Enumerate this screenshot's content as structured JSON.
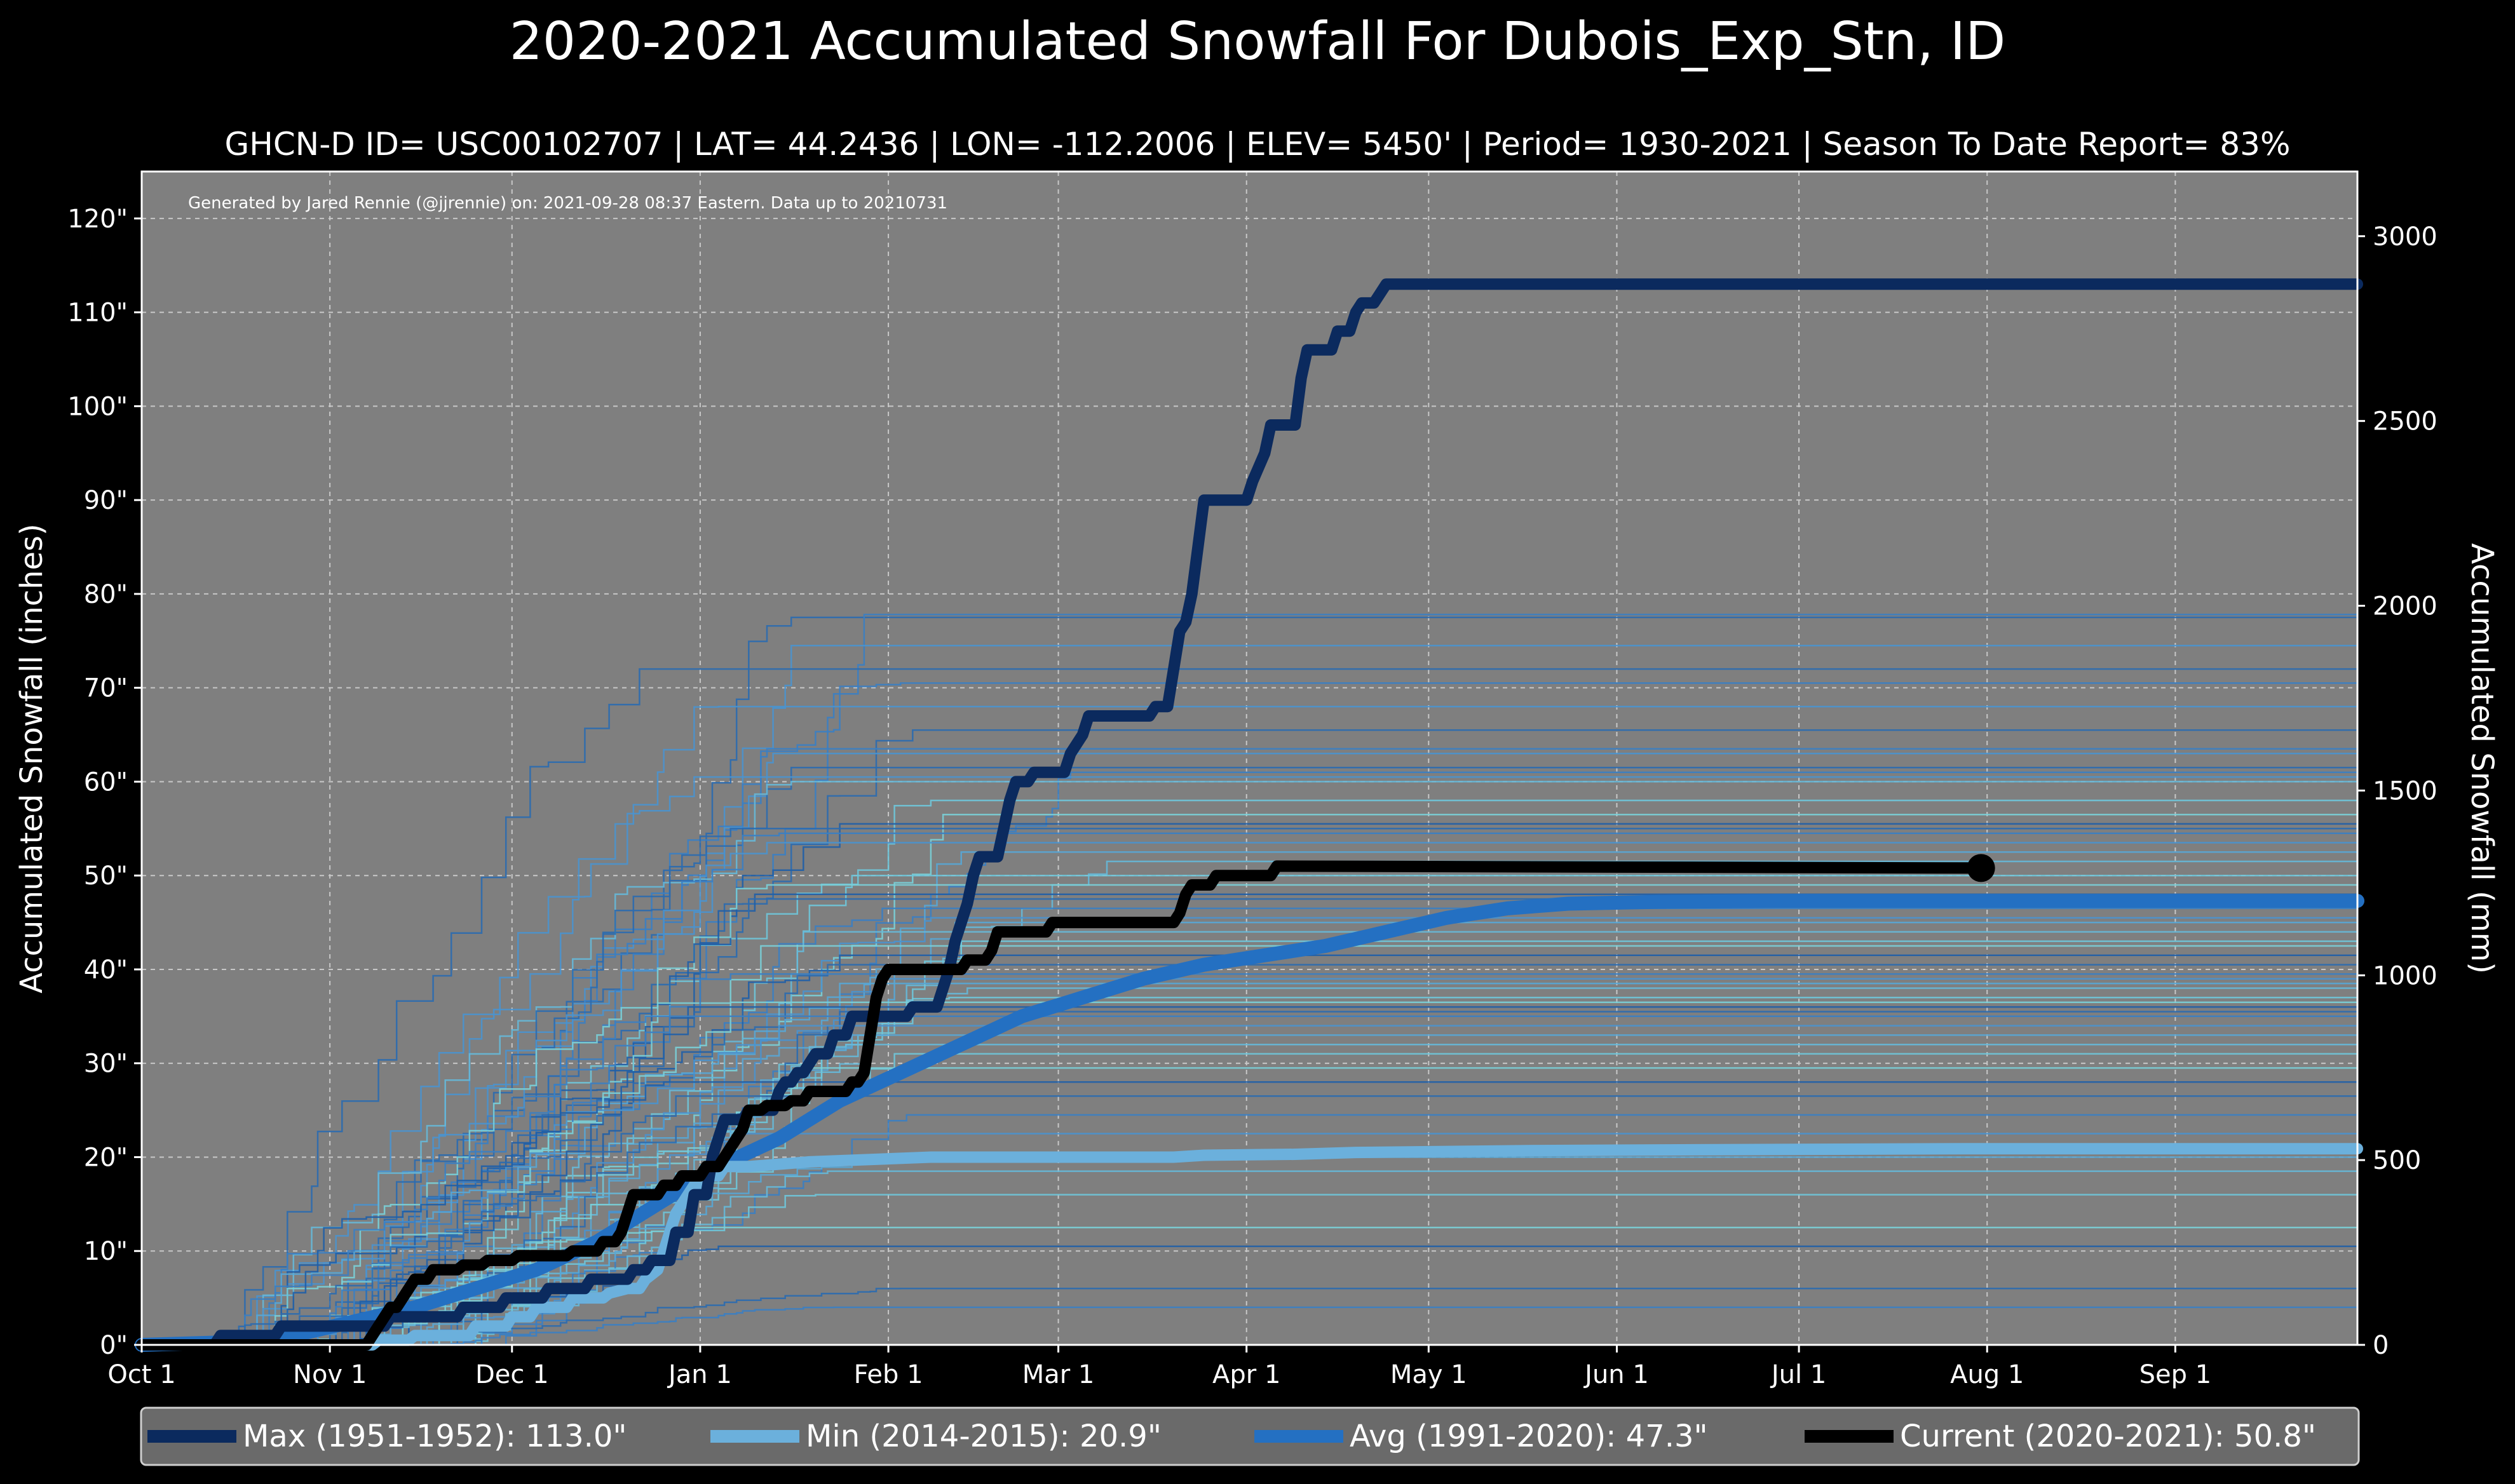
{
  "chart_data": {
    "type": "line",
    "title": "2020-2021 Accumulated Snowfall For Dubois_Exp_Stn, ID",
    "subtitle": "GHCN-D ID= USC00102707 | LAT= 44.2436 | LON= -112.2006 | ELEV= 5450' | Period= 1930-2021 | Season To Date Report= 83%",
    "credit": "Generated by Jared Rennie (@jjrennie) on: 2021-09-28 08:37 Eastern. Data up to 20210731",
    "ylabel": "Accumulated Snowfall (inches)",
    "ylabel_right": "Accumulated Snowfall (mm)",
    "xlim": [
      0,
      365
    ],
    "ylim": [
      0,
      125
    ],
    "x_ticks": [
      {
        "day": 0,
        "label": "Oct 1"
      },
      {
        "day": 31,
        "label": "Nov 1"
      },
      {
        "day": 61,
        "label": "Dec 1"
      },
      {
        "day": 92,
        "label": "Jan 1"
      },
      {
        "day": 123,
        "label": "Feb 1"
      },
      {
        "day": 151,
        "label": "Mar 1"
      },
      {
        "day": 182,
        "label": "Apr 1"
      },
      {
        "day": 212,
        "label": "May 1"
      },
      {
        "day": 243,
        "label": "Jun 1"
      },
      {
        "day": 273,
        "label": "Jul 1"
      },
      {
        "day": 304,
        "label": "Aug 1"
      },
      {
        "day": 335,
        "label": "Sep 1"
      }
    ],
    "y_ticks": [
      {
        "value": 0,
        "label": "0\""
      },
      {
        "value": 10,
        "label": "10\""
      },
      {
        "value": 20,
        "label": "20\""
      },
      {
        "value": 30,
        "label": "30\""
      },
      {
        "value": 40,
        "label": "40\""
      },
      {
        "value": 50,
        "label": "50\""
      },
      {
        "value": 60,
        "label": "60\""
      },
      {
        "value": 70,
        "label": "70\""
      },
      {
        "value": 80,
        "label": "80\""
      },
      {
        "value": 90,
        "label": "90\""
      },
      {
        "value": 100,
        "label": "100\""
      },
      {
        "value": 110,
        "label": "110\""
      },
      {
        "value": 120,
        "label": "120\""
      }
    ],
    "y2_ticks": [
      {
        "mm": 0,
        "label": "0"
      },
      {
        "mm": 500,
        "label": "500"
      },
      {
        "mm": 1000,
        "label": "1000"
      },
      {
        "mm": 1500,
        "label": "1500"
      },
      {
        "mm": 2000,
        "label": "2000"
      },
      {
        "mm": 2500,
        "label": "2500"
      },
      {
        "mm": 3000,
        "label": "3000"
      }
    ],
    "background_season_finals": [
      77.5,
      77.8,
      74.5,
      72.0,
      70.5,
      68.0,
      65.5,
      63.5,
      63.0,
      61.5,
      61.0,
      60.5,
      60.0,
      58.0,
      56.5,
      55.5,
      55.0,
      54.5,
      53.5,
      52.5,
      51.5,
      50.0,
      49.0,
      48.0,
      47.5,
      46.5,
      45.5,
      45.0,
      44.0,
      43.0,
      42.5,
      41.5,
      40.5,
      39.5,
      39.0,
      38.5,
      38.0,
      37.0,
      36.5,
      36.0,
      35.5,
      35.0,
      34.0,
      33.0,
      32.0,
      31.0,
      29.5,
      28.0,
      26.5,
      24.5,
      22.5,
      20.0,
      18.5,
      16.0,
      12.5,
      10.5,
      6.0,
      4.0
    ],
    "series": [
      {
        "name": "Max (1951-1952)",
        "legend": "Max (1951-1952):  113.0\"",
        "color": "#0b2a5e",
        "points": [
          [
            0,
            0
          ],
          [
            12,
            0
          ],
          [
            13,
            1
          ],
          [
            22,
            1
          ],
          [
            23,
            2
          ],
          [
            40,
            2
          ],
          [
            41,
            3
          ],
          [
            52,
            3
          ],
          [
            53,
            4
          ],
          [
            59,
            4
          ],
          [
            60,
            5
          ],
          [
            66,
            5
          ],
          [
            67,
            6
          ],
          [
            73,
            6
          ],
          [
            74,
            7
          ],
          [
            80,
            7
          ],
          [
            81,
            8
          ],
          [
            83,
            8
          ],
          [
            84,
            9
          ],
          [
            87,
            9
          ],
          [
            88,
            12
          ],
          [
            90,
            12
          ],
          [
            91,
            16
          ],
          [
            93,
            16
          ],
          [
            94,
            20
          ],
          [
            95,
            22
          ],
          [
            96,
            24
          ],
          [
            99,
            24
          ],
          [
            100,
            25
          ],
          [
            104,
            25
          ],
          [
            105,
            27
          ],
          [
            106,
            28
          ],
          [
            107,
            28
          ],
          [
            108,
            29
          ],
          [
            109,
            29
          ],
          [
            110,
            30
          ],
          [
            111,
            31
          ],
          [
            113,
            31
          ],
          [
            114,
            33
          ],
          [
            116,
            33
          ],
          [
            117,
            35
          ],
          [
            126,
            35
          ],
          [
            127,
            36
          ],
          [
            131,
            36
          ],
          [
            132,
            38
          ],
          [
            133,
            40
          ],
          [
            134,
            43
          ],
          [
            135,
            45
          ],
          [
            136,
            47
          ],
          [
            137,
            50
          ],
          [
            138,
            52
          ],
          [
            141,
            52
          ],
          [
            142,
            55
          ],
          [
            143,
            58
          ],
          [
            144,
            60
          ],
          [
            146,
            60
          ],
          [
            147,
            61
          ],
          [
            152,
            61
          ],
          [
            153,
            63
          ],
          [
            155,
            65
          ],
          [
            156,
            67
          ],
          [
            166,
            67
          ],
          [
            167,
            68
          ],
          [
            169,
            68
          ],
          [
            170,
            72
          ],
          [
            171,
            76
          ],
          [
            172,
            77
          ],
          [
            173,
            80
          ],
          [
            174,
            85
          ],
          [
            175,
            90
          ],
          [
            182,
            90
          ],
          [
            183,
            92
          ],
          [
            185,
            95
          ],
          [
            186,
            98
          ],
          [
            190,
            98
          ],
          [
            191,
            103
          ],
          [
            192,
            106
          ],
          [
            196,
            106
          ],
          [
            197,
            108
          ],
          [
            199,
            108
          ],
          [
            200,
            110
          ],
          [
            201,
            111
          ],
          [
            203,
            111
          ],
          [
            204,
            112
          ],
          [
            205,
            113
          ],
          [
            365,
            113
          ]
        ]
      },
      {
        "name": "Min (2014-2015)",
        "legend": "Min (2014-2015):   20.9\"",
        "color": "#6bb0dc",
        "points": [
          [
            0,
            0
          ],
          [
            38,
            0
          ],
          [
            39,
            0.5
          ],
          [
            44,
            0.5
          ],
          [
            45,
            1
          ],
          [
            54,
            1
          ],
          [
            55,
            2
          ],
          [
            60,
            2
          ],
          [
            61,
            3
          ],
          [
            64,
            3
          ],
          [
            65,
            4
          ],
          [
            70,
            4
          ],
          [
            71,
            5
          ],
          [
            76,
            5
          ],
          [
            77,
            5.5
          ],
          [
            80,
            6
          ],
          [
            82,
            6
          ],
          [
            83,
            7
          ],
          [
            85,
            8
          ],
          [
            86,
            10
          ],
          [
            87,
            12
          ],
          [
            88,
            14
          ],
          [
            89,
            15
          ],
          [
            90,
            16
          ],
          [
            91,
            17
          ],
          [
            92,
            17
          ],
          [
            93,
            18
          ],
          [
            95,
            18
          ],
          [
            96,
            19
          ],
          [
            100,
            19
          ],
          [
            110,
            19.5
          ],
          [
            130,
            20
          ],
          [
            170,
            20
          ],
          [
            175,
            20.2
          ],
          [
            190,
            20.3
          ],
          [
            200,
            20.5
          ],
          [
            230,
            20.7
          ],
          [
            260,
            20.8
          ],
          [
            300,
            20.9
          ],
          [
            365,
            20.9
          ]
        ]
      },
      {
        "name": "Avg (1991-2020)",
        "legend": "Avg (1991-2020):   47.3\"",
        "color": "#2470c2",
        "points": [
          [
            0,
            0
          ],
          [
            15,
            0.3
          ],
          [
            25,
            1
          ],
          [
            35,
            2.5
          ],
          [
            45,
            4
          ],
          [
            55,
            6
          ],
          [
            65,
            8
          ],
          [
            75,
            11
          ],
          [
            85,
            15
          ],
          [
            95,
            19
          ],
          [
            105,
            22
          ],
          [
            115,
            26
          ],
          [
            125,
            29
          ],
          [
            135,
            32
          ],
          [
            145,
            35
          ],
          [
            155,
            37
          ],
          [
            165,
            39
          ],
          [
            175,
            40.5
          ],
          [
            185,
            41.5
          ],
          [
            195,
            42.5
          ],
          [
            205,
            44
          ],
          [
            215,
            45.5
          ],
          [
            225,
            46.5
          ],
          [
            235,
            47
          ],
          [
            250,
            47.2
          ],
          [
            270,
            47.3
          ],
          [
            365,
            47.3
          ]
        ]
      },
      {
        "name": "Current (2020-2021)",
        "legend": "Current (2020-2021):   50.8\"",
        "color": "#000000",
        "end_day": 303,
        "end_value": 50.8,
        "points": [
          [
            0,
            0
          ],
          [
            37,
            0
          ],
          [
            38,
            1
          ],
          [
            39,
            2
          ],
          [
            40,
            3
          ],
          [
            41,
            4
          ],
          [
            42,
            4
          ],
          [
            43,
            5
          ],
          [
            44,
            6
          ],
          [
            45,
            7
          ],
          [
            47,
            7
          ],
          [
            48,
            8
          ],
          [
            52,
            8
          ],
          [
            53,
            8.5
          ],
          [
            56,
            8.5
          ],
          [
            57,
            9
          ],
          [
            61,
            9
          ],
          [
            62,
            9.5
          ],
          [
            70,
            9.5
          ],
          [
            71,
            10
          ],
          [
            75,
            10
          ],
          [
            76,
            11
          ],
          [
            78,
            11
          ],
          [
            79,
            12
          ],
          [
            80,
            14
          ],
          [
            81,
            16
          ],
          [
            85,
            16
          ],
          [
            86,
            17
          ],
          [
            88,
            17
          ],
          [
            89,
            18
          ],
          [
            92,
            18
          ],
          [
            93,
            19
          ],
          [
            95,
            19
          ],
          [
            96,
            20
          ],
          [
            97,
            21
          ],
          [
            98,
            22
          ],
          [
            99,
            23
          ],
          [
            100,
            25
          ],
          [
            102,
            25
          ],
          [
            103,
            25.5
          ],
          [
            106,
            25.5
          ],
          [
            107,
            26
          ],
          [
            109,
            26
          ],
          [
            110,
            27
          ],
          [
            116,
            27
          ],
          [
            117,
            28
          ],
          [
            118,
            28
          ],
          [
            119,
            29
          ],
          [
            120,
            33
          ],
          [
            121,
            37
          ],
          [
            122,
            39
          ],
          [
            123,
            40
          ],
          [
            130,
            40
          ],
          [
            135,
            40
          ],
          [
            136,
            41
          ],
          [
            139,
            41
          ],
          [
            140,
            42
          ],
          [
            141,
            44
          ],
          [
            149,
            44
          ],
          [
            150,
            45
          ],
          [
            170,
            45
          ],
          [
            171,
            46
          ],
          [
            172,
            48
          ],
          [
            173,
            49
          ],
          [
            176,
            49
          ],
          [
            177,
            50
          ],
          [
            186,
            50
          ],
          [
            187,
            51
          ],
          [
            303,
            50.8
          ]
        ]
      }
    ],
    "legend_position": "bottom"
  }
}
